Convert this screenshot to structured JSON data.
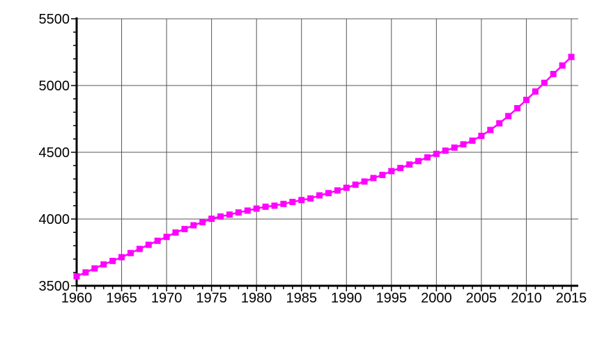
{
  "chart_data": {
    "type": "line",
    "title": "",
    "xlabel": "",
    "ylabel": "",
    "xlim": [
      1960,
      2015
    ],
    "ylim": [
      3500,
      5500
    ],
    "grid": true,
    "x_ticks": [
      "1960",
      "1965",
      "1970",
      "1975",
      "1980",
      "1985",
      "1990",
      "1995",
      "2000",
      "2005",
      "2010",
      "2015"
    ],
    "y_ticks": [
      "3500",
      "4000",
      "4500",
      "5000",
      "5500"
    ],
    "line_color": "#ff00ff",
    "marker": "square",
    "x": [
      1960,
      1961,
      1962,
      1963,
      1964,
      1965,
      1966,
      1967,
      1968,
      1969,
      1970,
      1971,
      1972,
      1973,
      1974,
      1975,
      1976,
      1977,
      1978,
      1979,
      1980,
      1981,
      1982,
      1983,
      1984,
      1985,
      1986,
      1987,
      1988,
      1989,
      1990,
      1991,
      1992,
      1993,
      1994,
      1995,
      1996,
      1997,
      1998,
      1999,
      2000,
      2001,
      2002,
      2003,
      2004,
      2005,
      2006,
      2007,
      2008,
      2009,
      2010,
      2011,
      2012,
      2013,
      2014,
      2015
    ],
    "y": [
      3571,
      3600,
      3630,
      3660,
      3686,
      3714,
      3745,
      3776,
      3807,
      3837,
      3866,
      3899,
      3925,
      3953,
      3977,
      4002,
      4019,
      4033,
      4049,
      4063,
      4078,
      4092,
      4100,
      4113,
      4128,
      4142,
      4154,
      4177,
      4194,
      4214,
      4234,
      4257,
      4281,
      4307,
      4330,
      4359,
      4382,
      4408,
      4434,
      4462,
      4488,
      4512,
      4535,
      4559,
      4587,
      4623,
      4667,
      4717,
      4771,
      4830,
      4892,
      4955,
      5020,
      5086,
      5150,
      5214
    ]
  }
}
